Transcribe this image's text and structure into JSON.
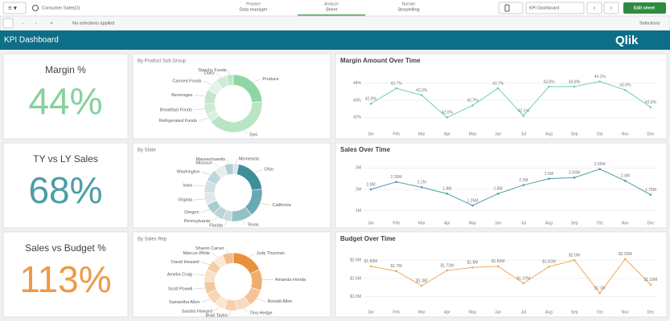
{
  "toolbar": {
    "app": "Consumer Sales(1)",
    "tabs": [
      {
        "label": "Prepare",
        "sub": "Data manager"
      },
      {
        "label": "Analyze",
        "sub": "Sheet"
      },
      {
        "label": "Narrate",
        "sub": "Storytelling"
      }
    ],
    "sheet": "KPI Dashboard",
    "edit": "Edit sheet",
    "selections_info": "No selections applied",
    "selections": "Selections"
  },
  "header": {
    "title": "KPI Dashboard",
    "logo": "Qlik"
  },
  "kpis": [
    {
      "title": "Margin %",
      "value": "44%",
      "color": "#86d19c"
    },
    {
      "title": "TY vs LY Sales",
      "value": "68%",
      "color": "#4c9da8"
    },
    {
      "title": "Sales vs Budget %",
      "value": "113%",
      "color": "#ee9a45"
    }
  ],
  "chart_data": [
    {
      "type": "pie",
      "title": "By Product Sub Group",
      "categories": [
        "Produce",
        "Deli",
        "Refrigerated Foods",
        "Breakfast Foods",
        "Beverages",
        "Canned Foods",
        "Dairy",
        "Starchy Foods"
      ],
      "values": [
        24,
        40,
        5,
        6,
        8,
        7,
        6,
        4
      ],
      "colors": [
        "#8fd6a4",
        "#b8e5c4",
        "#d9f0df",
        "#cdebd5",
        "#c2e7cc",
        "#e4f4e8",
        "#d0ecd8",
        "#bfe6c9"
      ]
    },
    {
      "type": "pie",
      "title": "By State",
      "categories": [
        "Minnesota",
        "Ohio",
        "California",
        "Texas",
        "Florida",
        "Pennsylvania",
        "Oregon",
        "Virginia",
        "Iowa",
        "Washington",
        "Missouri",
        "Massachusetts"
      ],
      "values": [
        3,
        20,
        16,
        12,
        5,
        6,
        6,
        7,
        7,
        7,
        6,
        5
      ],
      "colors": [
        "#d7e6e8",
        "#3f8f9b",
        "#6aa9b2",
        "#93c1c8",
        "#c8dde0",
        "#b9d4d8",
        "#aacbd0",
        "#dde9eb",
        "#cfe1e3",
        "#bed7db",
        "#e5eeef",
        "#b0cfd3"
      ]
    },
    {
      "type": "pie",
      "title": "By Sales Rep",
      "categories": [
        "Judy Thurman",
        "Amanda Honda",
        "Ronald Allen",
        "Tina Hedge",
        "Brad Taylor",
        "Sandra Howard",
        "Samantha Allen",
        "Scott Powell",
        "Amelia Craig",
        "David Howard",
        "Marcus White",
        "Sharon Carver"
      ],
      "values": [
        18,
        12,
        10,
        8,
        7,
        6,
        7,
        7,
        7,
        6,
        6,
        6
      ],
      "colors": [
        "#e8913a",
        "#f0ae6e",
        "#f4c497",
        "#f8dabe",
        "#f6cfab",
        "#fae5d1",
        "#f7d6b6",
        "#f3c8a0",
        "#f9dfc6",
        "#f5cca5",
        "#fbe9d7",
        "#f2be8e"
      ]
    },
    {
      "type": "line",
      "title": "Margin Amount Over Time",
      "color": "#6ccfb8",
      "categories": [
        "Jan",
        "Feb",
        "Mar",
        "Apr",
        "May",
        "Jun",
        "Jul",
        "Aug",
        "Sep",
        "Oct",
        "Nov",
        "Dec"
      ],
      "values": [
        42.8,
        43.7,
        43.3,
        42.0,
        42.7,
        43.7,
        42.1,
        43.8,
        43.8,
        44.1,
        43.6,
        42.6
      ],
      "value_labels": [
        "42.8%",
        "43.7%",
        "43.3%",
        "42.0%",
        "42.7%",
        "43.7%",
        "42.1%",
        "43.8%",
        "43.8%",
        "44.1%",
        "43.6%",
        "42.6%"
      ],
      "ylim": [
        41.5,
        44.5
      ],
      "yticks": [
        {
          "value": 42,
          "label": "42%"
        },
        {
          "value": 43,
          "label": "43%"
        },
        {
          "value": 44,
          "label": "44%"
        }
      ],
      "grid": true
    },
    {
      "type": "line",
      "title": "Sales Over Time",
      "color": "#4c9da8",
      "categories": [
        "Jan",
        "Feb",
        "Mar",
        "Apr",
        "May",
        "Jun",
        "Jul",
        "Aug",
        "Sep",
        "Oct",
        "Nov",
        "Dec"
      ],
      "values": [
        2.0,
        2.35,
        2.1,
        1.8,
        1.25,
        1.8,
        2.2,
        2.5,
        2.55,
        2.95,
        2.4,
        1.75
      ],
      "value_labels": [
        "2.0M",
        "2.35M",
        "2.1M",
        "1.8M",
        "1.25M",
        "1.8M",
        "2.2M",
        "2.5M",
        "2.55M",
        "2.95M",
        "2.4M",
        "1.75M"
      ],
      "ylim": [
        0.8,
        3.2
      ],
      "yticks": [
        {
          "value": 1,
          "label": "1M"
        },
        {
          "value": 2,
          "label": "2M"
        },
        {
          "value": 3,
          "label": "3M"
        }
      ],
      "grid": true
    },
    {
      "type": "line",
      "title": "Budget Over Time",
      "color": "#f3a95c",
      "categories": [
        "Jan",
        "Feb",
        "Mar",
        "Apr",
        "May",
        "Jun",
        "Jul",
        "Aug",
        "Sep",
        "Oct",
        "Nov",
        "Dec"
      ],
      "values": [
        1.83,
        1.7,
        1.3,
        1.72,
        1.8,
        1.83,
        1.37,
        1.82,
        2.0,
        1.1,
        2.03,
        1.33
      ],
      "value_labels": [
        "$1.83M",
        "$1.7M",
        "$1.3M",
        "$1.72M",
        "$1.8M",
        "$1.83M",
        "$1.37M",
        "$1.82M",
        "$2.0M",
        "$1.1M",
        "$2.03M",
        "$1.33M"
      ],
      "ylim": [
        0.8,
        2.2
      ],
      "yticks": [
        {
          "value": 1,
          "label": "$1.0M"
        },
        {
          "value": 1.5,
          "label": "$1.5M"
        },
        {
          "value": 2,
          "label": "$2.0M"
        }
      ],
      "grid": true
    }
  ]
}
